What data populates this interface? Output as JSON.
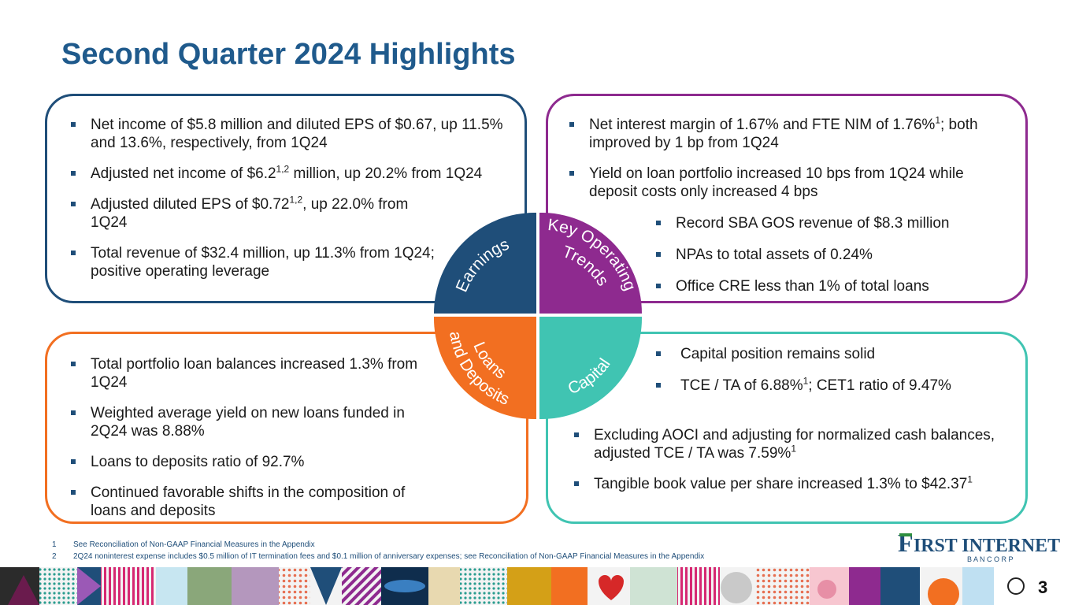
{
  "title": "Second Quarter 2024 Highlights",
  "colors": {
    "earnings": "#1f4e79",
    "key": "#8e2a8f",
    "loans": "#f26f21",
    "capital": "#40c4b2",
    "title": "#1f5a8c"
  },
  "wheel": {
    "earnings": "Earnings",
    "key_line1": "Key Operating",
    "key_line2": "Trends",
    "loans_line1": "Loans",
    "loans_line2": "and Deposits",
    "capital": "Capital"
  },
  "earnings": {
    "b1": "Net income of $5.8 million and diluted EPS of $0.67, up 11.5% and 13.6%, respectively, from 1Q24",
    "b2_pre": "Adjusted net income of $6.2",
    "b2_sup": "1,2",
    "b2_post": " million, up 20.2% from 1Q24",
    "b3_pre": "Adjusted diluted EPS of $0.72",
    "b3_sup": "1,2",
    "b3_post": ", up 22.0% from 1Q24",
    "b4": "Total revenue of $32.4 million, up 11.3% from 1Q24; positive operating leverage"
  },
  "key_trends": {
    "b1_pre": "Net interest margin of 1.67% and FTE NIM of 1.76%",
    "b1_sup": "1",
    "b1_post": "; both improved by 1 bp from 1Q24",
    "b2": "Yield on loan portfolio increased 10 bps from 1Q24 while deposit costs only increased 4 bps",
    "b3": "Record SBA GOS revenue of $8.3 million",
    "b4": "NPAs to total assets of 0.24%",
    "b5": "Office CRE less than 1% of total loans"
  },
  "loans": {
    "b1": "Total portfolio loan balances increased 1.3% from 1Q24",
    "b2": "Weighted average yield on new loans funded in 2Q24 was 8.88%",
    "b3": "Loans to deposits ratio of 92.7%",
    "b4": "Continued favorable shifts in the composition of loans and deposits"
  },
  "capital": {
    "b1": "Capital position remains solid",
    "b2_pre": "TCE / TA of 6.88%",
    "b2_sup": "1",
    "b2_post": "; CET1 ratio of 9.47%",
    "b3_pre": "Excluding AOCI and adjusting for normalized cash balances, adjusted TCE / TA was 7.59%",
    "b3_sup": "1",
    "b4_pre": "Tangible book value per share increased 1.3% to $42.37",
    "b4_sup": "1"
  },
  "footnotes": [
    {
      "num": "1",
      "text": "See Reconciliation of Non-GAAP Financial Measures in the Appendix"
    },
    {
      "num": "2",
      "text": "2Q24 noninterest expense includes $0.5 million of IT termination fees and $0.1 million of anniversary expenses; see Reconciliation of Non-GAAP Financial Measures in the Appendix"
    }
  ],
  "logo": {
    "initial": "F",
    "name": "IRST INTERNET",
    "sub": "B A N C O R P"
  },
  "page_number": "3"
}
